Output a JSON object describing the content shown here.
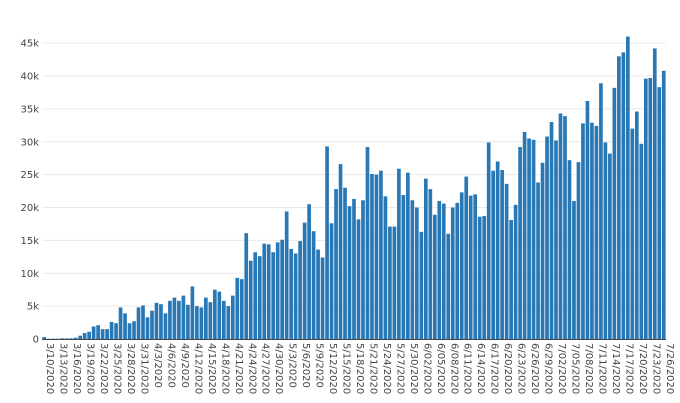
{
  "chart_data": {
    "type": "bar",
    "title": "",
    "xlabel": "",
    "ylabel": "",
    "ylim": [
      0,
      47000
    ],
    "grid": true,
    "bar_color": "#2878b5",
    "y_ticks": [
      {
        "value": 0,
        "label": "0"
      },
      {
        "value": 5000,
        "label": "5k"
      },
      {
        "value": 10000,
        "label": "10k"
      },
      {
        "value": 15000,
        "label": "15k"
      },
      {
        "value": 20000,
        "label": "20k"
      },
      {
        "value": 25000,
        "label": "25k"
      },
      {
        "value": 30000,
        "label": "30k"
      },
      {
        "value": 35000,
        "label": "35k"
      },
      {
        "value": 40000,
        "label": "40k"
      },
      {
        "value": 45000,
        "label": "45k"
      }
    ],
    "x_ticks": [
      "3/10/2020",
      "3/13/2020",
      "3/16/2020",
      "3/19/2020",
      "3/22/2020",
      "3/25/2020",
      "3/28/2020",
      "3/31/2020",
      "4/3/2020",
      "4/6/2020",
      "4/9/2020",
      "4/12/2020",
      "4/15/2020",
      "4/18/2020",
      "4/21/2020",
      "4/24/2020",
      "4/27/2020",
      "4/30/2020",
      "5/3/2020",
      "5/6/2020",
      "5/9/2020",
      "5/12/2020",
      "5/15/2020",
      "5/18/2020",
      "5/21/2020",
      "5/24/2020",
      "5/27/2020",
      "5/30/2020",
      "6/02/2020",
      "6/05/2020",
      "6/08/2020",
      "6/11/2020",
      "6/14/2020",
      "6/17/2020",
      "6/20/2020",
      "6/23/2020",
      "6/26/2020",
      "6/29/2020",
      "7/02/2020",
      "7/05/2020",
      "7/08/2020",
      "7/11/2020",
      "7/14/2020",
      "7/17/2020",
      "7/20/2020",
      "7/23/2020",
      "7/26/2020"
    ],
    "x_start": "3/10/2020",
    "x_end": "7/26/2020",
    "values": [
      300,
      50,
      50,
      50,
      100,
      100,
      100,
      200,
      500,
      900,
      1100,
      1900,
      2100,
      1500,
      1500,
      2600,
      2400,
      4800,
      3900,
      2400,
      2700,
      4800,
      5100,
      3300,
      4300,
      5500,
      5300,
      3900,
      5800,
      6300,
      5800,
      6600,
      5200,
      8000,
      5000,
      4800,
      6300,
      5600,
      7500,
      7200,
      5800,
      5000,
      6600,
      9300,
      9100,
      16100,
      11900,
      13200,
      12600,
      14500,
      14400,
      13200,
      14700,
      15100,
      19400,
      13700,
      13000,
      14900,
      17700,
      20500,
      16400,
      13600,
      12400,
      29300,
      17600,
      22800,
      26600,
      23000,
      20200,
      21300,
      18200,
      21100,
      29200,
      25100,
      25000,
      25600,
      21700,
      17100,
      17100,
      25900,
      21900,
      25300,
      21100,
      20000,
      16300,
      24400,
      22800,
      18900,
      21000,
      20600,
      16000,
      20000,
      20700,
      22300,
      24700,
      21800,
      22000,
      18600,
      18700,
      29900,
      25600,
      27000,
      25700,
      23600,
      18100,
      20400,
      29200,
      31500,
      30500,
      30300,
      23800,
      26800,
      30800,
      33000,
      30200,
      34300,
      33900,
      27200,
      21000,
      26900,
      32800,
      36200,
      32900,
      32400,
      38900,
      29900,
      28200,
      38200,
      43000,
      43600,
      46000,
      32000,
      34600,
      29700,
      39600,
      39700,
      44200,
      38300,
      40800
    ]
  }
}
